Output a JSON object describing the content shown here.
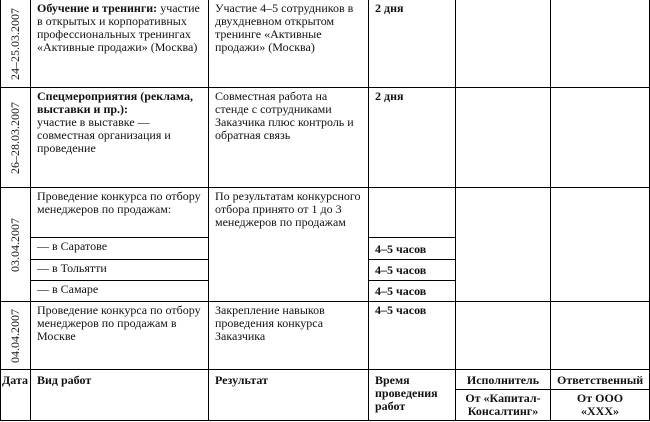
{
  "rows": [
    {
      "date": "24–25.03.2007",
      "work_title": "Обучение и тренинги:",
      "work": "участие в открытых и корпоративных профессиональных тренингах «Активные продажи» (Москва)",
      "result": "Участие 4–5 сотрудников в двухдневном открытом тренинге «Активные продажи» (Москва)",
      "time": "2 дня"
    },
    {
      "date": "26–28.03.2007",
      "work_title": "Спецмероприятия (реклама, выставки и пр.):",
      "work": "участие в выставке — совместная организация и проведение",
      "result": "Совместная работа на стенде с сотрудниками Заказчика плюс контроль и обратная связь",
      "time": "2 дня"
    },
    {
      "date": "03.04.2007",
      "work": "Проведение конкурса по отбору менеджеров по продажам:",
      "result": "По результатам конкурсного отбора принято от 1 до 3 менеджеров по продажам",
      "subrows": [
        {
          "work": "— в Саратове",
          "time": "4–5 часов"
        },
        {
          "work": "— в Тольятти",
          "time": "4–5 часов"
        },
        {
          "work": "— в Самаре",
          "time": "4–5 часов"
        }
      ]
    },
    {
      "date": "04.04.2007",
      "work": "Проведение конкурса по отбору менеджеров по продажам в Москве",
      "result": "Закрепление навыков проведения конкурса Заказчика",
      "time": "4–5 часов"
    }
  ],
  "header": {
    "date": "Дата",
    "work": "Вид работ",
    "result": "Результат",
    "time": "Время проведения работ",
    "executor": "Исполнитель",
    "executor_sub": "От «Капитал-Консалтинг»",
    "responsible": "Ответственный",
    "responsible_sub": "От ООО «XXX»"
  }
}
